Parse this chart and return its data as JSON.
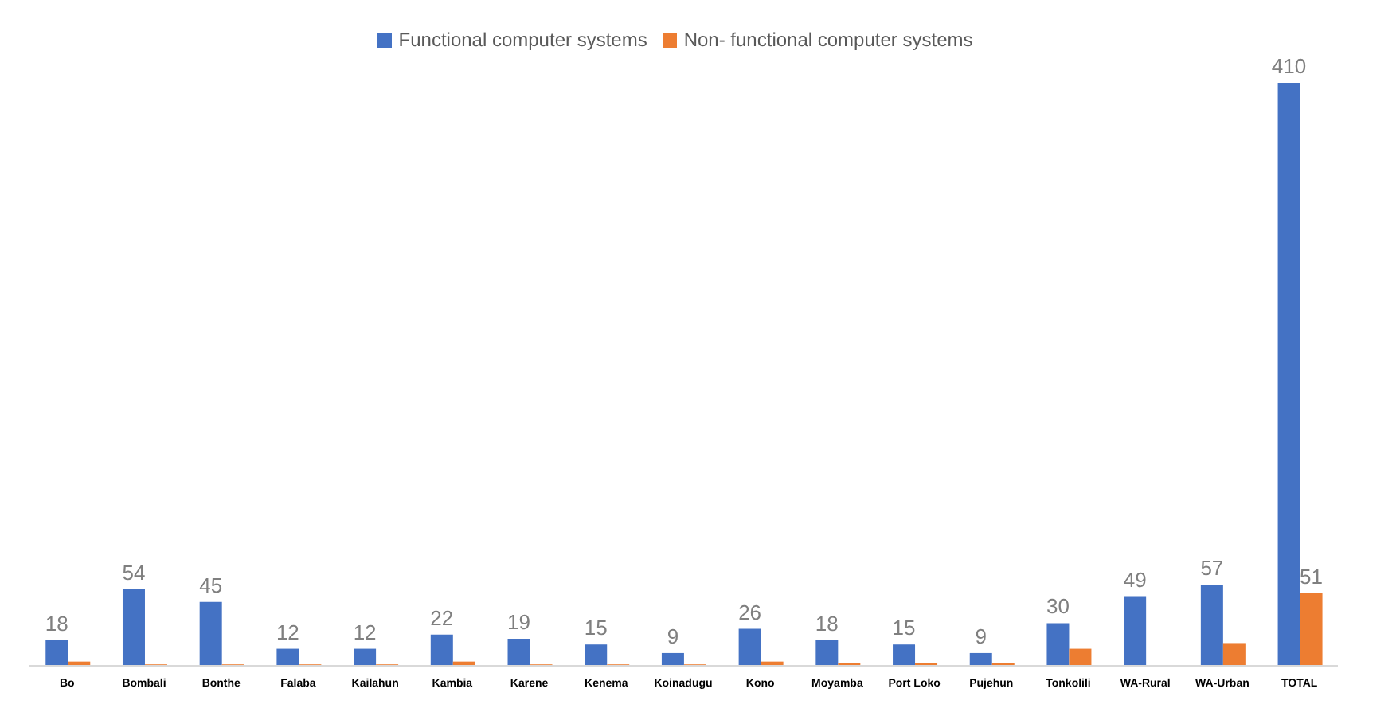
{
  "chart_data": {
    "type": "bar",
    "categories": [
      "Bo",
      "Bombali",
      "Bonthe",
      "Falaba",
      "Kailahun",
      "Kambia",
      "Karene",
      "Kenema",
      "Koinadugu",
      "Kono",
      "Moyamba",
      "Port Loko",
      "Pujehun",
      "Tonkolili",
      "WA-Rural",
      "WA-Urban",
      "TOTAL"
    ],
    "series": [
      {
        "name": "Functional computer systems",
        "color": "#4472c4",
        "values": [
          18,
          54,
          45,
          12,
          12,
          22,
          19,
          15,
          9,
          26,
          18,
          15,
          9,
          30,
          49,
          57,
          410
        ],
        "value_labels": [
          "18",
          "54",
          "45",
          "12",
          "12",
          "22",
          "19",
          "15",
          "9",
          "26",
          "18",
          "15",
          "9",
          "30",
          "49",
          "57",
          "410"
        ]
      },
      {
        "name": "Non- functional computer systems",
        "color": "#ed7d31",
        "values": [
          3,
          1,
          1,
          1,
          1,
          3,
          1,
          1,
          1,
          3,
          2,
          2,
          2,
          12,
          0,
          16,
          51
        ],
        "value_labels": [
          null,
          null,
          null,
          null,
          null,
          null,
          null,
          null,
          null,
          null,
          null,
          null,
          null,
          null,
          null,
          null,
          "51"
        ]
      }
    ],
    "legend": "top"
  }
}
